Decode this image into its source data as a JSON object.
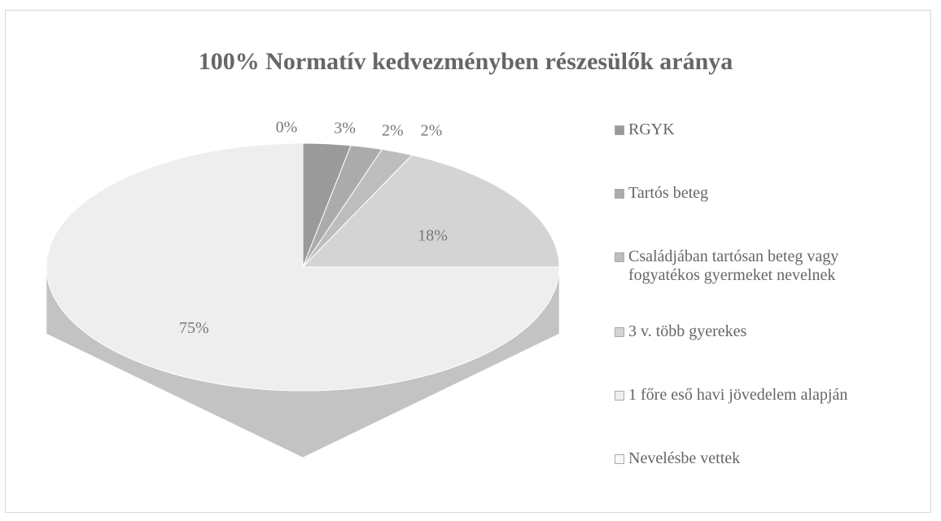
{
  "chart_data": {
    "type": "pie",
    "title": "100% Normatív kedvezményben részesülők aránya",
    "categories": [
      "RGYK",
      "Tartós beteg",
      "Családjában tartósan beteg vagy fogyatékos gyermeket nevelnek",
      "3 v. több gyerekes",
      "1 főre eső havi jövedelem alapján",
      "Nevelésbe vettek"
    ],
    "values": [
      3,
      2,
      2,
      18,
      75,
      0
    ],
    "value_labels": [
      "3%",
      "2%",
      "2%",
      "18%",
      "75%",
      "0%"
    ],
    "colors": [
      "#9a9a9a",
      "#ababab",
      "#bdbdbd",
      "#d4d4d4",
      "#eeeeee",
      "#f7f7f7"
    ],
    "legend": "right"
  }
}
